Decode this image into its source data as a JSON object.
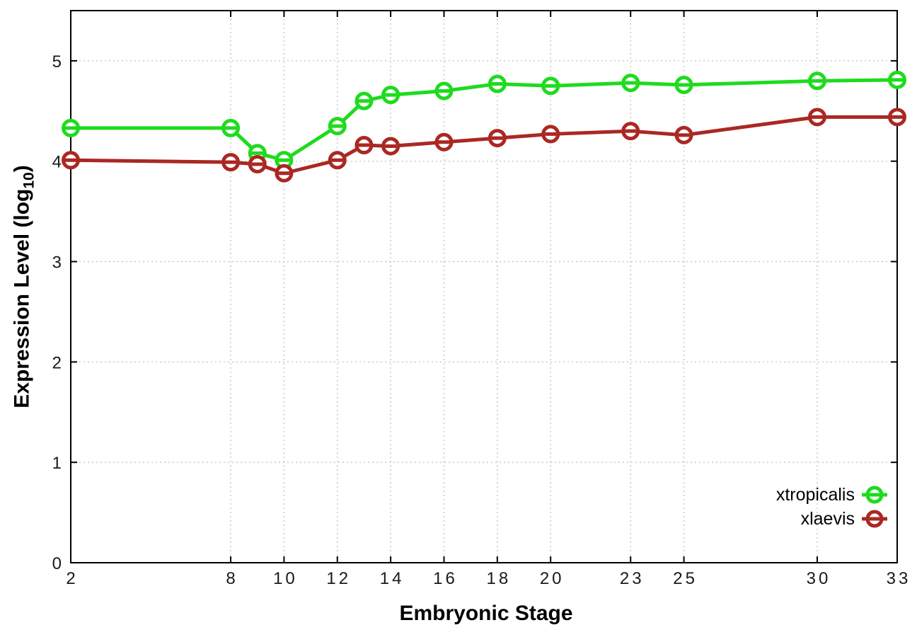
{
  "chart_data": {
    "type": "line",
    "title": "",
    "xlabel": "Embryonic Stage",
    "ylabel": "Expression Level (log10)",
    "ylabel_parts": {
      "prefix": "Expression Level (log",
      "sub": "10",
      "suffix": ")"
    },
    "x": [
      2,
      8,
      9,
      10,
      12,
      13,
      14,
      16,
      18,
      20,
      23,
      25,
      30,
      33
    ],
    "xticks": [
      2,
      8,
      10,
      12,
      14,
      16,
      18,
      20,
      23,
      25,
      30,
      33
    ],
    "yticks": [
      0,
      1,
      2,
      3,
      4,
      5
    ],
    "xlim": [
      2,
      33
    ],
    "ylim": [
      0,
      5.5
    ],
    "grid": true,
    "legend_position": "bottom-right",
    "colors": {
      "axis": "#000000",
      "grid": "#c4c4c4",
      "background": "#ffffff"
    },
    "series": [
      {
        "name": "xtropicalis",
        "color": "#1edb1e",
        "marker": "circle-minus",
        "values": [
          4.33,
          4.33,
          4.08,
          4.01,
          4.35,
          4.6,
          4.66,
          4.7,
          4.77,
          4.75,
          4.78,
          4.76,
          4.8,
          4.81
        ]
      },
      {
        "name": "xlaevis",
        "color": "#aa2823",
        "marker": "circle-minus",
        "values": [
          4.01,
          3.99,
          3.97,
          3.88,
          4.01,
          4.16,
          4.15,
          4.19,
          4.23,
          4.27,
          4.3,
          4.26,
          4.44,
          4.44
        ]
      }
    ]
  }
}
